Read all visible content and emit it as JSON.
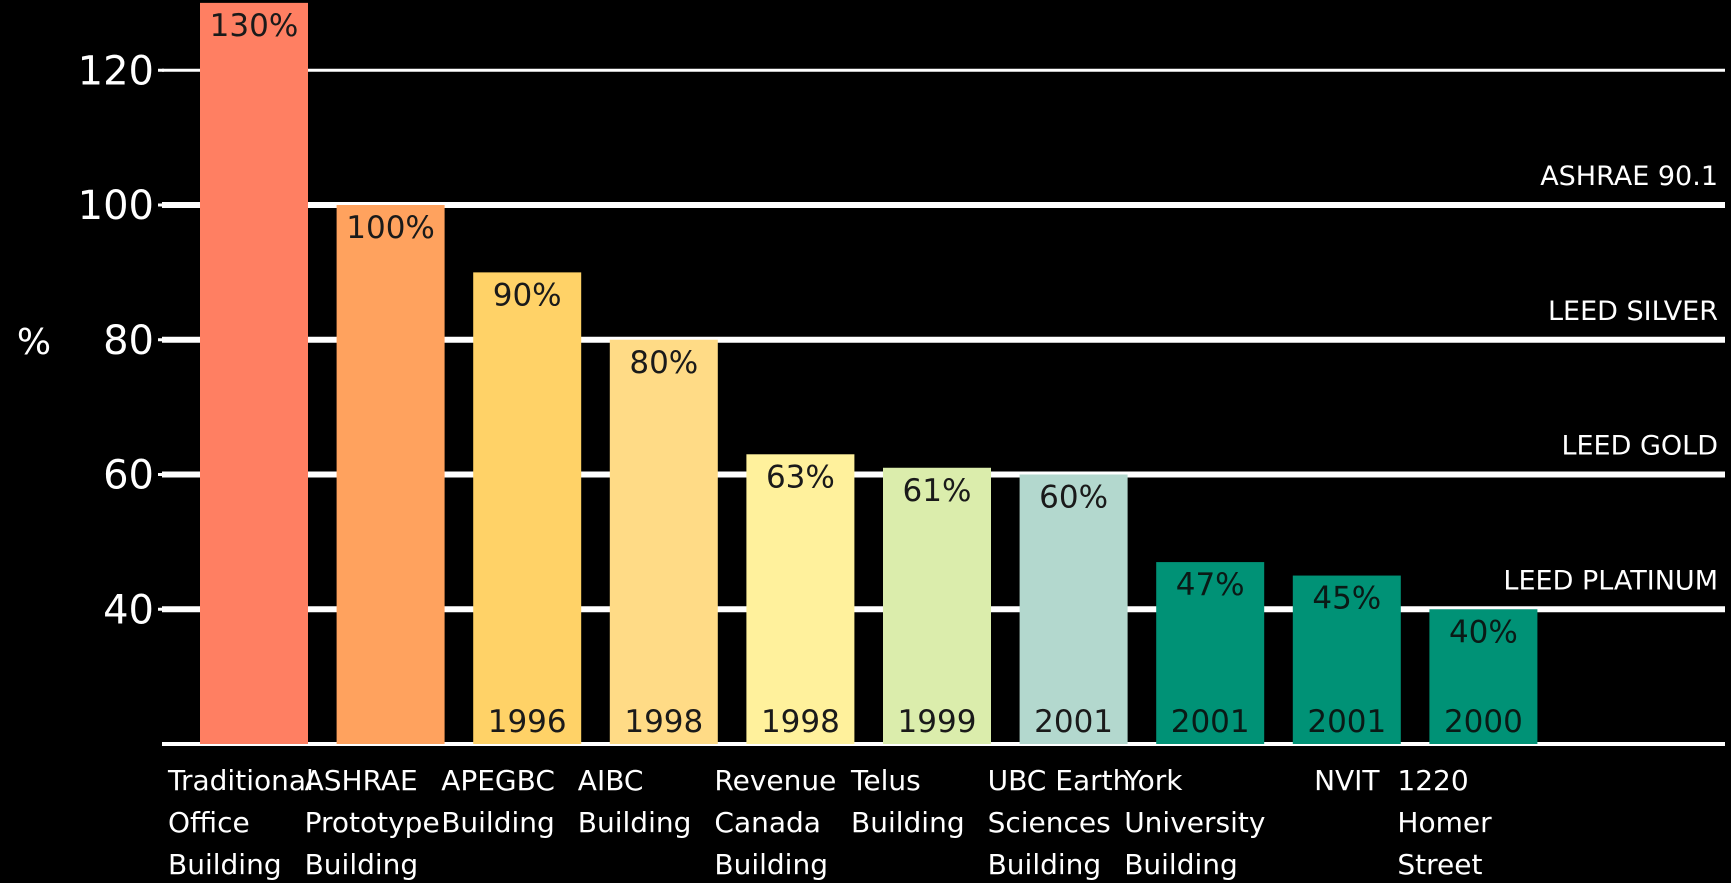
{
  "chart_data": {
    "type": "bar",
    "title": "",
    "xlabel": "",
    "ylabel": "%",
    "ylim": [
      20,
      130
    ],
    "yticks": [
      40,
      60,
      80,
      100,
      120
    ],
    "grid": true,
    "categories": [
      [
        "Traditional",
        "Office",
        "Building"
      ],
      [
        "ASHRAE",
        "Prototype",
        "Building"
      ],
      [
        "APEGBC",
        "Building"
      ],
      [
        "AIBC",
        "Building"
      ],
      [
        "Revenue",
        "Canada",
        "Building"
      ],
      [
        "Telus",
        "Building"
      ],
      [
        "UBC Earth",
        "Sciences",
        "Building"
      ],
      [
        "York",
        "University",
        "Building"
      ],
      [
        "NVIT"
      ],
      [
        "1220",
        "Homer",
        "Street"
      ]
    ],
    "values": [
      130,
      100,
      90,
      80,
      63,
      61,
      60,
      47,
      45,
      40
    ],
    "value_labels": [
      "130%",
      "100%",
      "90%",
      "80%",
      "63%",
      "61%",
      "60%",
      "47%",
      "45%",
      "40%"
    ],
    "years": [
      "",
      "",
      "1996",
      "1998",
      "1998",
      "1999",
      "2001",
      "2001",
      "2001",
      "2000"
    ],
    "bar_colors": [
      "#ff7f62",
      "#ffa25e",
      "#ffd267",
      "#ffdb86",
      "#fff19c",
      "#dbedac",
      "#b3d8ce",
      "#009276",
      "#009276",
      "#009276"
    ],
    "reference_lines": [
      {
        "label": "ASHRAE 90.1",
        "value": 100
      },
      {
        "label": "LEED SILVER",
        "value": 80
      },
      {
        "label": "LEED GOLD",
        "value": 60
      },
      {
        "label": "LEED PLATINUM",
        "value": 40
      }
    ]
  }
}
